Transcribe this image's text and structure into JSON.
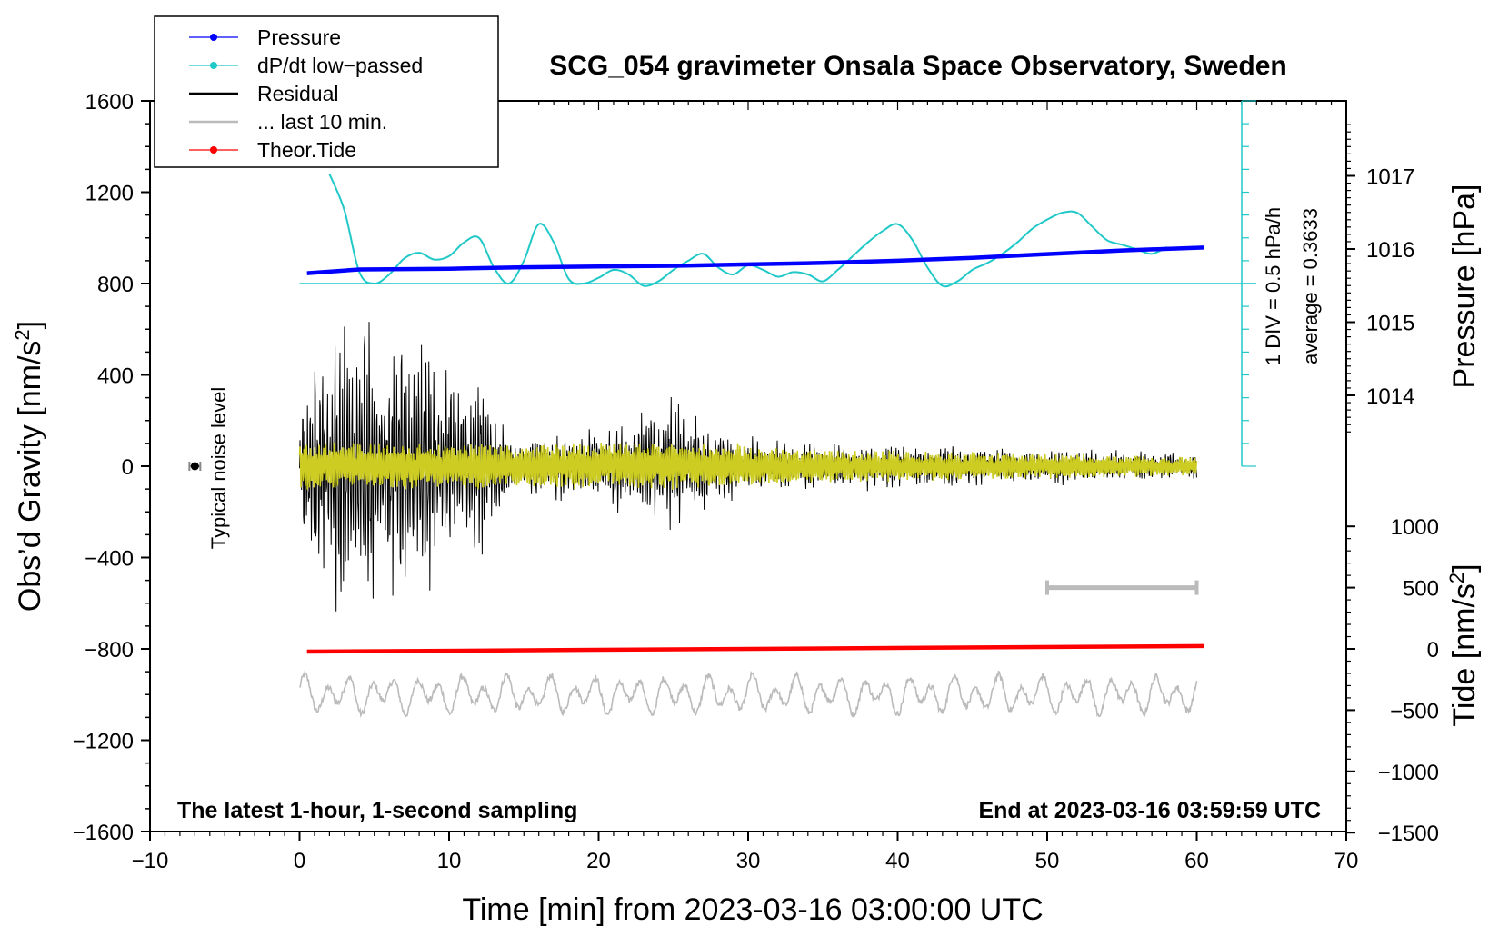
{
  "chart_data": {
    "type": "line",
    "title": "SCG_054 gravimeter Onsala Space Observatory, Sweden",
    "subtitle_left": "The latest 1-hour, 1-second sampling",
    "subtitle_right": "End at 2023-03-16 03:59:59 UTC",
    "xlabel": "Time [min] from 2023-03-16 03:00:00 UTC",
    "xlim": [
      -10,
      70
    ],
    "x_ticks": [
      -10,
      0,
      10,
      20,
      30,
      40,
      50,
      60,
      70
    ],
    "x_tick_labels": [
      "−10",
      "0",
      "10",
      "20",
      "30",
      "40",
      "50",
      "60",
      "70"
    ],
    "ylabel_left": "Obs’d Gravity [nm/s",
    "ylabel_left_sup": "2",
    "ylabel_left_close": "]",
    "ylim_left": [
      -1600,
      1600
    ],
    "y_ticks_left": [
      -1600,
      -1200,
      -800,
      -400,
      0,
      400,
      800,
      1200,
      1600
    ],
    "y_tick_labels_left": [
      "−1600",
      "−1200",
      "−800",
      "−400",
      "0",
      "400",
      "800",
      "1200",
      "1600"
    ],
    "ylabel_pressure": "Pressure [hPa]",
    "pressure_ticks": [
      1014,
      1015,
      1016,
      1017
    ],
    "pressure_tick_labels": [
      "1014",
      "1015",
      "1016",
      "1017"
    ],
    "ylabel_tide": "Tide [nm/s",
    "ylabel_tide_sup": "2",
    "ylabel_tide_close": "]",
    "tide_ticks": [
      -1500,
      -1000,
      -500,
      0,
      500,
      1000
    ],
    "tide_tick_labels": [
      "−1500",
      "−1000",
      "−500",
      "0",
      "500",
      "1000"
    ],
    "dpdt_scale_label": "1 DIV = 0.5 hPa/h",
    "dpdt_average_label": "average = 0.3633",
    "noise_label": "Typical noise level",
    "legend": [
      {
        "label": "Pressure",
        "color": "#0000ff",
        "marker": "dot"
      },
      {
        "label": "dP/dt low−passed",
        "color": "#20c8c8",
        "marker": "dot"
      },
      {
        "label": "Residual",
        "color": "#000000",
        "marker": "none"
      },
      {
        "label": "... last 10 min.",
        "color": "#bbbbbb",
        "marker": "none"
      },
      {
        "label": "Theor.Tide",
        "color": "#ff0000",
        "marker": "dot"
      }
    ],
    "series": [
      {
        "name": "Pressure",
        "unit": "hPa",
        "x": [
          0.5,
          4,
          10,
          15,
          20,
          25,
          30,
          35,
          40,
          45,
          50,
          55,
          60.5
        ],
        "values": [
          1015.67,
          1015.72,
          1015.73,
          1015.75,
          1015.76,
          1015.77,
          1015.79,
          1015.81,
          1015.84,
          1015.88,
          1015.93,
          1015.98,
          1016.02
        ]
      },
      {
        "name": "dP/dt low−passed",
        "unit": "gravity-axis nm/s²",
        "x": [
          2,
          3,
          4,
          5,
          6,
          7,
          8,
          9,
          10,
          11,
          12,
          13,
          14,
          15,
          16,
          17,
          18,
          19,
          20,
          21,
          22,
          23,
          24,
          25,
          26,
          27,
          28,
          29,
          30,
          31,
          32,
          33,
          34,
          35,
          36,
          37,
          38,
          39,
          40,
          41,
          42,
          43,
          44,
          45,
          46,
          47,
          48,
          49,
          50,
          51,
          52,
          53,
          54,
          55,
          56,
          57,
          58
        ],
        "values": [
          1280,
          1120,
          850,
          800,
          840,
          910,
          935,
          905,
          920,
          980,
          1000,
          870,
          800,
          900,
          1060,
          980,
          820,
          800,
          825,
          860,
          840,
          790,
          810,
          860,
          900,
          930,
          870,
          840,
          880,
          860,
          830,
          850,
          840,
          810,
          860,
          920,
          980,
          1030,
          1060,
          990,
          870,
          790,
          810,
          860,
          890,
          930,
          980,
          1040,
          1080,
          1110,
          1110,
          1050,
          990,
          970,
          950,
          930,
          960
        ]
      },
      {
        "name": "Theor.Tide",
        "unit": "nm/s²",
        "x": [
          0.5,
          60.5
        ],
        "values": [
          -22,
          23
        ]
      },
      {
        "name": "Residual",
        "unit": "nm/s²",
        "envelope_x": [
          0,
          2,
          4,
          6,
          8,
          10,
          12,
          13,
          14,
          20,
          25,
          30,
          40,
          50,
          60
        ],
        "envelope_amplitude": [
          350,
          640,
          700,
          520,
          640,
          380,
          420,
          380,
          120,
          170,
          300,
          120,
          100,
          80,
          60
        ]
      },
      {
        "name": "... last 10 min.",
        "unit": "nm/s²",
        "x_range": [
          0,
          60
        ],
        "center": -1000,
        "amplitude": 80
      }
    ],
    "annotations": {
      "noise_bar_x": -7,
      "noise_bar_y": 0,
      "scale_bar_x": [
        50,
        60
      ],
      "scale_bar_tide": 500,
      "dpdt_baseline_gravity": 800,
      "dpdt_axis_top_gravity": 1600,
      "dpdt_axis_bottom_gravity": 0
    }
  }
}
